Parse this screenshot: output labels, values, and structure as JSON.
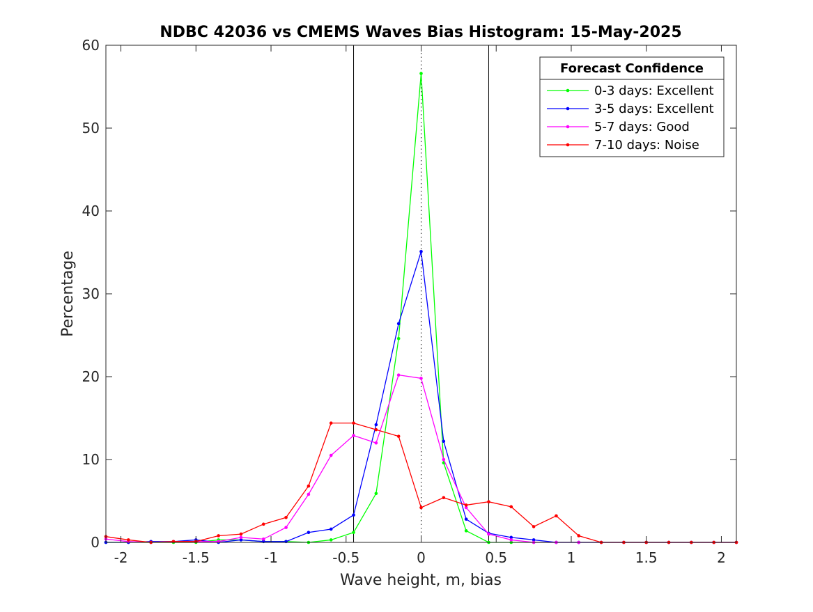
{
  "chart_data": {
    "type": "line",
    "title": "NDBC 42036 vs CMEMS Waves Bias Histogram: 15-May-2025",
    "xlabel": "Wave height, m, bias",
    "ylabel": "Percentage",
    "xlim": [
      -2.1,
      2.1
    ],
    "ylim": [
      0,
      60
    ],
    "x_ticks": [
      -2,
      -1.5,
      -1,
      -0.5,
      0,
      0.5,
      1,
      1.5,
      2
    ],
    "x_tick_labels": [
      "-2",
      "-1.5",
      "-1",
      "-0.5",
      "0",
      "0.5",
      "1",
      "1.5",
      "2"
    ],
    "y_ticks": [
      0,
      10,
      20,
      30,
      40,
      50,
      60
    ],
    "y_tick_labels": [
      "0",
      "10",
      "20",
      "30",
      "40",
      "50",
      "60"
    ],
    "grid": false,
    "legend": {
      "title": "Forecast Confidence",
      "placement": "top-right"
    },
    "reference_lines": [
      {
        "x": -0.45,
        "style": "solid",
        "color": "#000000"
      },
      {
        "x": 0.45,
        "style": "solid",
        "color": "#000000"
      },
      {
        "x": 0,
        "style": "dotted",
        "color": "#000000"
      }
    ],
    "x": [
      -2.1,
      -1.95,
      -1.8,
      -1.65,
      -1.5,
      -1.35,
      -1.2,
      -1.05,
      -0.9,
      -0.75,
      -0.6,
      -0.45,
      -0.3,
      -0.15,
      0,
      0.15,
      0.3,
      0.45,
      0.6,
      0.75,
      0.9,
      1.05,
      1.2,
      1.35,
      1.5,
      1.65,
      1.8,
      1.95,
      2.1
    ],
    "series": [
      {
        "name": "0-3 days: Excellent",
        "color": "#00ff00",
        "values": [
          0,
          0,
          0,
          0,
          0,
          0.3,
          0.3,
          0.1,
          0.1,
          0,
          0.3,
          1.2,
          5.9,
          24.6,
          56.6,
          9.6,
          1.4,
          0,
          0,
          0,
          0,
          0,
          0,
          0,
          0,
          0,
          0,
          0,
          0
        ]
      },
      {
        "name": "3-5 days: Excellent",
        "color": "#0000ff",
        "values": [
          0,
          0,
          0.1,
          0.1,
          0.3,
          0,
          0.3,
          0.1,
          0.1,
          1.2,
          1.6,
          3.3,
          14.2,
          26.4,
          35.1,
          12.2,
          2.8,
          1.1,
          0.6,
          0.3,
          0,
          0,
          0,
          0,
          0,
          0,
          0,
          0,
          0
        ]
      },
      {
        "name": "5-7 days: Good",
        "color": "#ff00ff",
        "values": [
          0.4,
          0.1,
          0,
          0.1,
          0.1,
          0.1,
          0.6,
          0.4,
          1.8,
          5.8,
          10.5,
          12.9,
          12,
          20.2,
          19.8,
          10,
          4.2,
          1,
          0.3,
          0,
          0,
          0,
          0,
          0,
          0,
          0,
          0,
          0,
          0
        ]
      },
      {
        "name": "7-10 days: Noise",
        "color": "#ff0000",
        "values": [
          0.7,
          0.3,
          0,
          0.1,
          0.1,
          0.8,
          1,
          2.2,
          3,
          6.8,
          14.4,
          14.4,
          13.6,
          12.8,
          4.2,
          5.4,
          4.5,
          4.9,
          4.3,
          1.9,
          3.2,
          0.8,
          0,
          0,
          0,
          0,
          0,
          0,
          0
        ]
      }
    ]
  }
}
